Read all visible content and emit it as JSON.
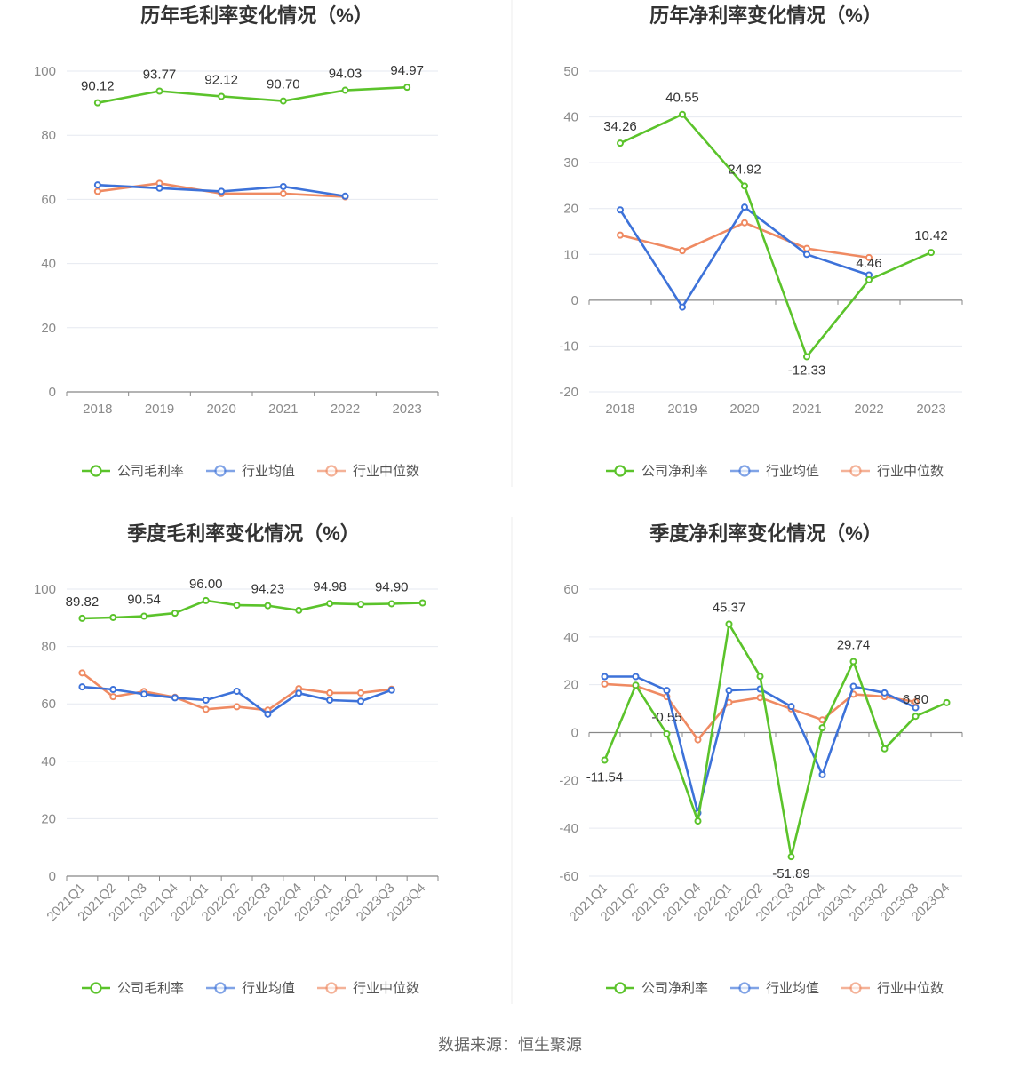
{
  "footer": "数据来源：恒生聚源",
  "colors": {
    "company": "#5bc32b",
    "avg": "#3d72d9",
    "median": "#ef8a62",
    "grid": "#e6e9f0",
    "axis": "#888888"
  },
  "chart_data": [
    {
      "type": "line",
      "title": "历年毛利率变化情况（%）",
      "categories": [
        "2018",
        "2019",
        "2020",
        "2021",
        "2022",
        "2023"
      ],
      "ylim": [
        0,
        100
      ],
      "yticks": [
        0,
        20,
        40,
        60,
        80,
        100
      ],
      "xlabel": "",
      "ylabel": "",
      "legend": "bottom",
      "series": [
        {
          "name": "公司毛利率",
          "key": "company",
          "values": [
            90.12,
            93.77,
            92.12,
            90.7,
            94.03,
            94.97
          ],
          "labels": [
            "90.12",
            "93.77",
            "92.12",
            "90.70",
            "94.03",
            "94.97"
          ]
        },
        {
          "name": "行业均值",
          "key": "avg",
          "values": [
            64.5,
            63.5,
            62.5,
            64.0,
            61.0,
            null
          ]
        },
        {
          "name": "行业中位数",
          "key": "median",
          "values": [
            62.5,
            65.0,
            61.8,
            61.8,
            60.8,
            null
          ]
        }
      ]
    },
    {
      "type": "line",
      "title": "历年净利率变化情况（%）",
      "categories": [
        "2018",
        "2019",
        "2020",
        "2021",
        "2022",
        "2023"
      ],
      "ylim": [
        -20,
        50
      ],
      "yticks": [
        -20,
        -10,
        0,
        10,
        20,
        30,
        40,
        50
      ],
      "xlabel": "",
      "ylabel": "",
      "legend": "bottom",
      "series": [
        {
          "name": "公司净利率",
          "key": "company",
          "values": [
            34.26,
            40.55,
            24.92,
            -12.33,
            4.46,
            10.42
          ],
          "labels": [
            "34.26",
            "40.55",
            "24.92",
            "-12.33",
            "4.46",
            "10.42"
          ]
        },
        {
          "name": "行业均值",
          "key": "avg",
          "values": [
            19.7,
            -1.5,
            20.3,
            10.0,
            5.5,
            null
          ]
        },
        {
          "name": "行业中位数",
          "key": "median",
          "values": [
            14.2,
            10.8,
            16.9,
            11.3,
            9.3,
            null
          ]
        }
      ]
    },
    {
      "type": "line",
      "title": "季度毛利率变化情况（%）",
      "categories": [
        "2021Q1",
        "2021Q2",
        "2021Q3",
        "2021Q4",
        "2022Q1",
        "2022Q2",
        "2022Q3",
        "2022Q4",
        "2023Q1",
        "2023Q2",
        "2023Q3",
        "2023Q4"
      ],
      "ylim": [
        0,
        100
      ],
      "yticks": [
        0,
        20,
        40,
        60,
        80,
        100
      ],
      "xlabel": "",
      "ylabel": "",
      "legend": "bottom",
      "series": [
        {
          "name": "公司毛利率",
          "key": "company",
          "values": [
            89.82,
            90.1,
            90.54,
            91.6,
            96.0,
            94.4,
            94.23,
            92.6,
            94.98,
            94.7,
            94.9,
            95.2
          ],
          "labels": [
            "89.82",
            "",
            "90.54",
            "",
            "96.00",
            "",
            "94.23",
            "",
            "94.98",
            "",
            "94.90",
            ""
          ]
        },
        {
          "name": "行业均值",
          "key": "avg",
          "values": [
            65.9,
            65.0,
            63.4,
            62.1,
            61.3,
            64.4,
            56.4,
            63.7,
            61.3,
            60.9,
            64.8,
            null
          ]
        },
        {
          "name": "行业中位数",
          "key": "median",
          "values": [
            70.8,
            62.5,
            64.3,
            62.3,
            58.1,
            59.0,
            57.8,
            65.3,
            63.8,
            63.8,
            65.1,
            null
          ]
        }
      ]
    },
    {
      "type": "line",
      "title": "季度净利率变化情况（%）",
      "categories": [
        "2021Q1",
        "2021Q2",
        "2021Q3",
        "2021Q4",
        "2022Q1",
        "2022Q2",
        "2022Q3",
        "2022Q4",
        "2023Q1",
        "2023Q2",
        "2023Q3",
        "2023Q4"
      ],
      "ylim": [
        -60,
        60
      ],
      "yticks": [
        -60,
        -40,
        -20,
        0,
        20,
        40,
        60
      ],
      "xlabel": "",
      "ylabel": "",
      "legend": "bottom",
      "series": [
        {
          "name": "公司净利率",
          "key": "company",
          "values": [
            -11.54,
            19.8,
            -0.55,
            -37.0,
            45.37,
            23.5,
            -51.89,
            2.0,
            29.74,
            -6.8,
            6.8,
            12.5
          ],
          "labels": [
            "-11.54",
            "",
            "-0.55",
            "",
            "45.37",
            "",
            "-51.89",
            "",
            "29.74",
            "",
            "6.80",
            ""
          ]
        },
        {
          "name": "行业均值",
          "key": "avg",
          "values": [
            23.4,
            23.4,
            17.6,
            -33.6,
            17.6,
            18.2,
            10.9,
            -17.6,
            19.3,
            16.6,
            10.4,
            null
          ]
        },
        {
          "name": "行业中位数",
          "key": "median",
          "values": [
            20.3,
            19.5,
            15.0,
            -3.0,
            12.6,
            14.6,
            9.9,
            5.3,
            16.0,
            15.0,
            12.8,
            null
          ]
        }
      ]
    }
  ]
}
